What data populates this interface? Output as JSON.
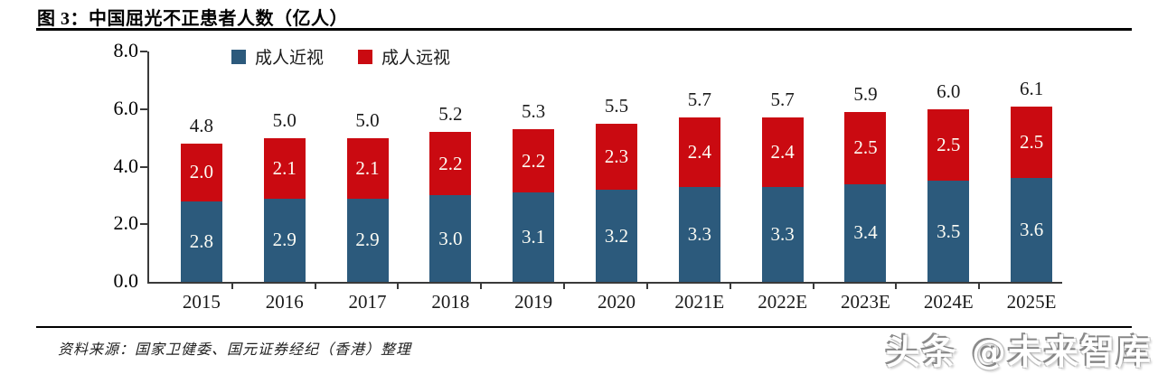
{
  "header": {
    "title": "图 3：中国屈光不正患者人数（亿人）"
  },
  "legend": {
    "items": [
      {
        "label": "成人近视",
        "color": "#2C5A7C"
      },
      {
        "label": "成人远视",
        "color": "#CA0A11"
      }
    ]
  },
  "chart_data": {
    "type": "bar",
    "stacked": true,
    "title": "中国屈光不正患者人数（亿人）",
    "categories": [
      "2015",
      "2016",
      "2017",
      "2018",
      "2019",
      "2020",
      "2021E",
      "2022E",
      "2023E",
      "2024E",
      "2025E"
    ],
    "series": [
      {
        "name": "成人近视",
        "color": "#2C5A7C",
        "values": [
          2.8,
          2.9,
          2.9,
          3.0,
          3.1,
          3.2,
          3.3,
          3.3,
          3.4,
          3.5,
          3.6
        ]
      },
      {
        "name": "成人远视",
        "color": "#CA0A11",
        "values": [
          2.0,
          2.1,
          2.1,
          2.2,
          2.2,
          2.3,
          2.4,
          2.4,
          2.5,
          2.5,
          2.5
        ]
      }
    ],
    "totals": [
      4.8,
      5.0,
      5.0,
      5.2,
      5.3,
      5.5,
      5.7,
      5.7,
      5.9,
      6.0,
      6.1
    ],
    "xlabel": "",
    "ylabel": "",
    "ylim": [
      0,
      8
    ],
    "yticks": [
      "0.0",
      "2.0",
      "4.0",
      "6.0",
      "8.0"
    ],
    "legend_position": "top",
    "grid": false,
    "data_labels": "inside-white, totals-above"
  },
  "footer": {
    "source": "资料来源：国家卫健委、国元证券经纪（香港）整理",
    "watermark": "头条 @未来智库"
  }
}
